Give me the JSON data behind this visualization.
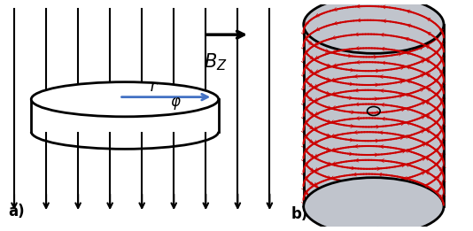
{
  "fig_width": 5.34,
  "fig_height": 2.61,
  "dpi": 100,
  "background_left": "#ffffff",
  "background_right": "#c0c4cc",
  "n_field_lines": 9,
  "label_a": "a)",
  "label_b": "b)",
  "Bz_label": "$B_Z$",
  "r_label": "r",
  "phi_label": "$\\varphi$",
  "arrow_color": "#000000",
  "field_line_color": "#000000",
  "blue_arrow_color": "#4472c4",
  "red_color": "#cc0000",
  "n_coil_turns": 13
}
